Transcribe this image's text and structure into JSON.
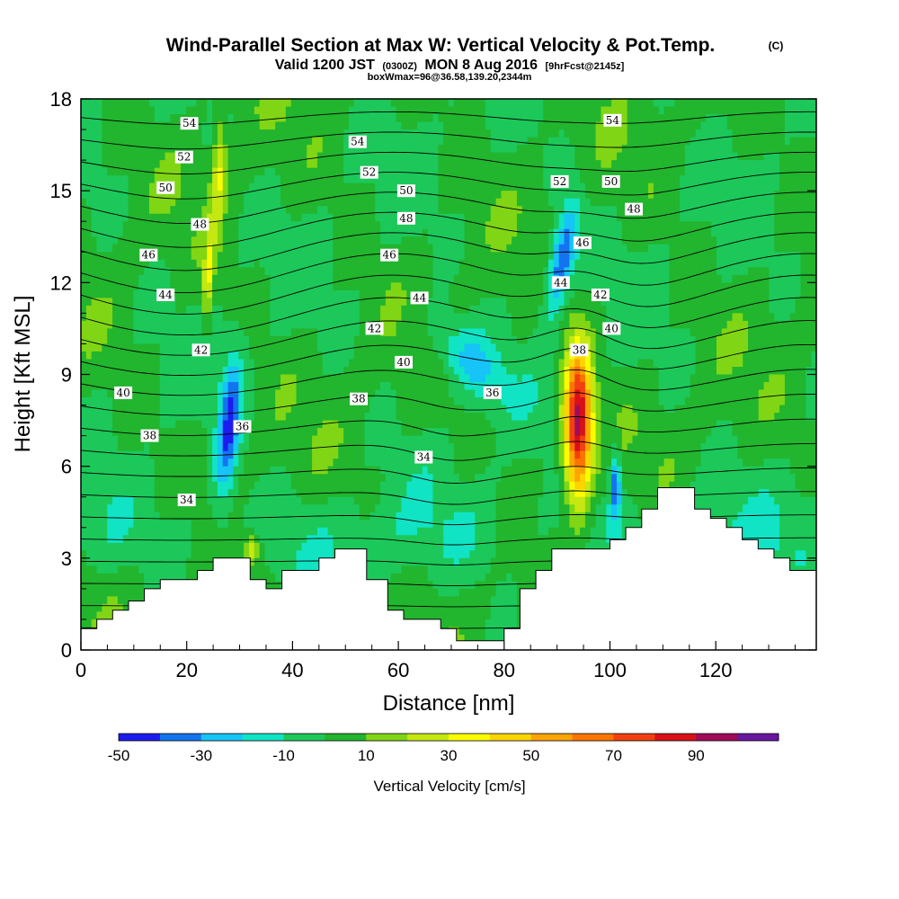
{
  "title": {
    "line1": "Wind-Parallel Section at Max W: Vertical Velocity & Pot.Temp.",
    "copyright": "(C)",
    "line2a": "Valid 1200 JST",
    "line2b": "(0300Z)",
    "line2c": "MON 8 Aug 2016",
    "line2d": "[9hrFcst@2145z]",
    "line3": "boxWmax=96@36.58,139.20,2344m"
  },
  "chart_data": {
    "type": "heatmap",
    "xlabel": "Distance [nm]",
    "ylabel": "Height [Kft MSL]",
    "xlim": [
      0,
      139
    ],
    "ylim": [
      0,
      18
    ],
    "xticks": [
      0,
      20,
      40,
      60,
      80,
      100,
      120
    ],
    "yticks": [
      0,
      3,
      6,
      9,
      12,
      15,
      18
    ],
    "fill_variable": "Vertical Velocity [cm/s]",
    "contour_variable": "Potential Temperature",
    "colorbar": {
      "label": "Vertical Velocity [cm/s]",
      "tick_labels": [
        "-50",
        "-30",
        "-10",
        "10",
        "30",
        "50",
        "70",
        "90"
      ],
      "tick_values": [
        -50,
        -30,
        -10,
        10,
        30,
        50,
        70,
        90
      ],
      "levels": [
        -50,
        -40,
        -30,
        -20,
        -10,
        0,
        10,
        20,
        30,
        40,
        50,
        60,
        70,
        80,
        90,
        100
      ],
      "colors": [
        "#1c1cf0",
        "#1474f0",
        "#16c4f8",
        "#10e4c4",
        "#1cc85a",
        "#22b52e",
        "#80d614",
        "#c4e810",
        "#fcfc00",
        "#fcd400",
        "#fca400",
        "#fc7400",
        "#f44010",
        "#d81018",
        "#a00c58",
        "#6818a0"
      ]
    },
    "terrain_kft": [
      [
        0,
        0.7
      ],
      [
        3,
        0.7
      ],
      [
        3,
        1.0
      ],
      [
        6,
        1.0
      ],
      [
        6,
        1.3
      ],
      [
        9,
        1.3
      ],
      [
        9,
        1.6
      ],
      [
        12,
        1.6
      ],
      [
        12,
        2.0
      ],
      [
        15,
        2.0
      ],
      [
        15,
        2.3
      ],
      [
        19,
        2.3
      ],
      [
        19,
        2.3
      ],
      [
        22,
        2.3
      ],
      [
        22,
        2.6
      ],
      [
        25,
        2.6
      ],
      [
        25,
        3.0
      ],
      [
        32,
        3.0
      ],
      [
        32,
        2.3
      ],
      [
        35,
        2.3
      ],
      [
        35,
        2.0
      ],
      [
        38,
        2.0
      ],
      [
        38,
        2.6
      ],
      [
        45,
        2.6
      ],
      [
        45,
        3.0
      ],
      [
        48,
        3.0
      ],
      [
        48,
        3.3
      ],
      [
        54,
        3.3
      ],
      [
        54,
        2.3
      ],
      [
        58,
        2.3
      ],
      [
        58,
        1.3
      ],
      [
        61,
        1.3
      ],
      [
        61,
        1.0
      ],
      [
        68,
        1.0
      ],
      [
        68,
        0.7
      ],
      [
        71,
        0.7
      ],
      [
        71,
        0.3
      ],
      [
        80,
        0.3
      ],
      [
        80,
        0.7
      ],
      [
        83,
        0.7
      ],
      [
        83,
        2.0
      ],
      [
        86,
        2.0
      ],
      [
        86,
        2.6
      ],
      [
        89,
        2.6
      ],
      [
        89,
        3.3
      ],
      [
        100,
        3.3
      ],
      [
        100,
        3.6
      ],
      [
        103,
        3.6
      ],
      [
        103,
        4.0
      ],
      [
        106,
        4.0
      ],
      [
        106,
        4.6
      ],
      [
        109,
        4.6
      ],
      [
        109,
        5.3
      ],
      [
        116,
        5.3
      ],
      [
        116,
        4.6
      ],
      [
        119,
        4.6
      ],
      [
        119,
        4.3
      ],
      [
        122,
        4.3
      ],
      [
        122,
        4.0
      ],
      [
        125,
        4.0
      ],
      [
        125,
        3.6
      ],
      [
        128,
        3.6
      ],
      [
        128,
        3.3
      ],
      [
        131,
        3.3
      ],
      [
        131,
        3.0
      ],
      [
        134,
        3.0
      ],
      [
        134,
        2.6
      ],
      [
        139,
        2.6
      ]
    ],
    "isentrope_labels": [
      {
        "value": "54",
        "x": 20.5,
        "y": 17.2
      },
      {
        "value": "54",
        "x": 52.3,
        "y": 16.6
      },
      {
        "value": "54",
        "x": 100.5,
        "y": 17.3
      },
      {
        "value": "52",
        "x": 19.5,
        "y": 16.1
      },
      {
        "value": "52",
        "x": 54.5,
        "y": 15.6
      },
      {
        "value": "52",
        "x": 90.5,
        "y": 15.3
      },
      {
        "value": "50",
        "x": 16.0,
        "y": 15.1
      },
      {
        "value": "50",
        "x": 61.5,
        "y": 15.0
      },
      {
        "value": "50",
        "x": 100.2,
        "y": 15.3
      },
      {
        "value": "48",
        "x": 22.5,
        "y": 13.9
      },
      {
        "value": "48",
        "x": 61.5,
        "y": 14.1
      },
      {
        "value": "48",
        "x": 104.5,
        "y": 14.4
      },
      {
        "value": "46",
        "x": 12.8,
        "y": 12.9
      },
      {
        "value": "46",
        "x": 58.3,
        "y": 12.9
      },
      {
        "value": "46",
        "x": 94.8,
        "y": 13.3
      },
      {
        "value": "44",
        "x": 16.0,
        "y": 11.6
      },
      {
        "value": "44",
        "x": 64.0,
        "y": 11.5
      },
      {
        "value": "44",
        "x": 90.7,
        "y": 12.0
      },
      {
        "value": "42",
        "x": 22.7,
        "y": 9.8
      },
      {
        "value": "42",
        "x": 55.5,
        "y": 10.5
      },
      {
        "value": "42",
        "x": 98.2,
        "y": 11.6
      },
      {
        "value": "40",
        "x": 8.0,
        "y": 8.4
      },
      {
        "value": "40",
        "x": 61.0,
        "y": 9.4
      },
      {
        "value": "40",
        "x": 100.3,
        "y": 10.5
      },
      {
        "value": "38",
        "x": 13.0,
        "y": 7.0
      },
      {
        "value": "38",
        "x": 52.5,
        "y": 8.2
      },
      {
        "value": "38",
        "x": 94.2,
        "y": 9.8
      },
      {
        "value": "36",
        "x": 30.5,
        "y": 7.3
      },
      {
        "value": "36",
        "x": 77.8,
        "y": 8.4
      },
      {
        "value": "34",
        "x": 20.0,
        "y": 4.9
      },
      {
        "value": "34",
        "x": 64.8,
        "y": 6.3
      }
    ],
    "isentrope_levels": [
      32,
      33,
      34,
      35,
      36,
      37,
      38,
      39,
      40,
      41,
      42,
      43,
      44,
      45,
      46,
      47,
      48,
      49,
      50,
      51,
      52,
      53,
      54,
      55
    ],
    "velocity_features": [
      {
        "kind": "updraft",
        "x": 94.0,
        "y": 7.4,
        "max_w": 96
      },
      {
        "kind": "downdraft",
        "x": 91.0,
        "y": 12.8,
        "min_w": -45
      },
      {
        "kind": "downdraft",
        "x": 28.0,
        "y": 7.3,
        "min_w": -42
      },
      {
        "kind": "downdraft",
        "x": 101.0,
        "y": 5.4,
        "min_w": -40
      },
      {
        "kind": "downdraft",
        "x": 73.0,
        "y": 9.5,
        "min_w": -25
      },
      {
        "kind": "updraft",
        "x": 32.5,
        "y": 3.3,
        "max_w": 30
      },
      {
        "kind": "updraft",
        "x": 26.0,
        "y": 15.5,
        "max_w": 30
      },
      {
        "kind": "updraft",
        "x": 24.0,
        "y": 12.0,
        "max_w": 28
      }
    ]
  }
}
